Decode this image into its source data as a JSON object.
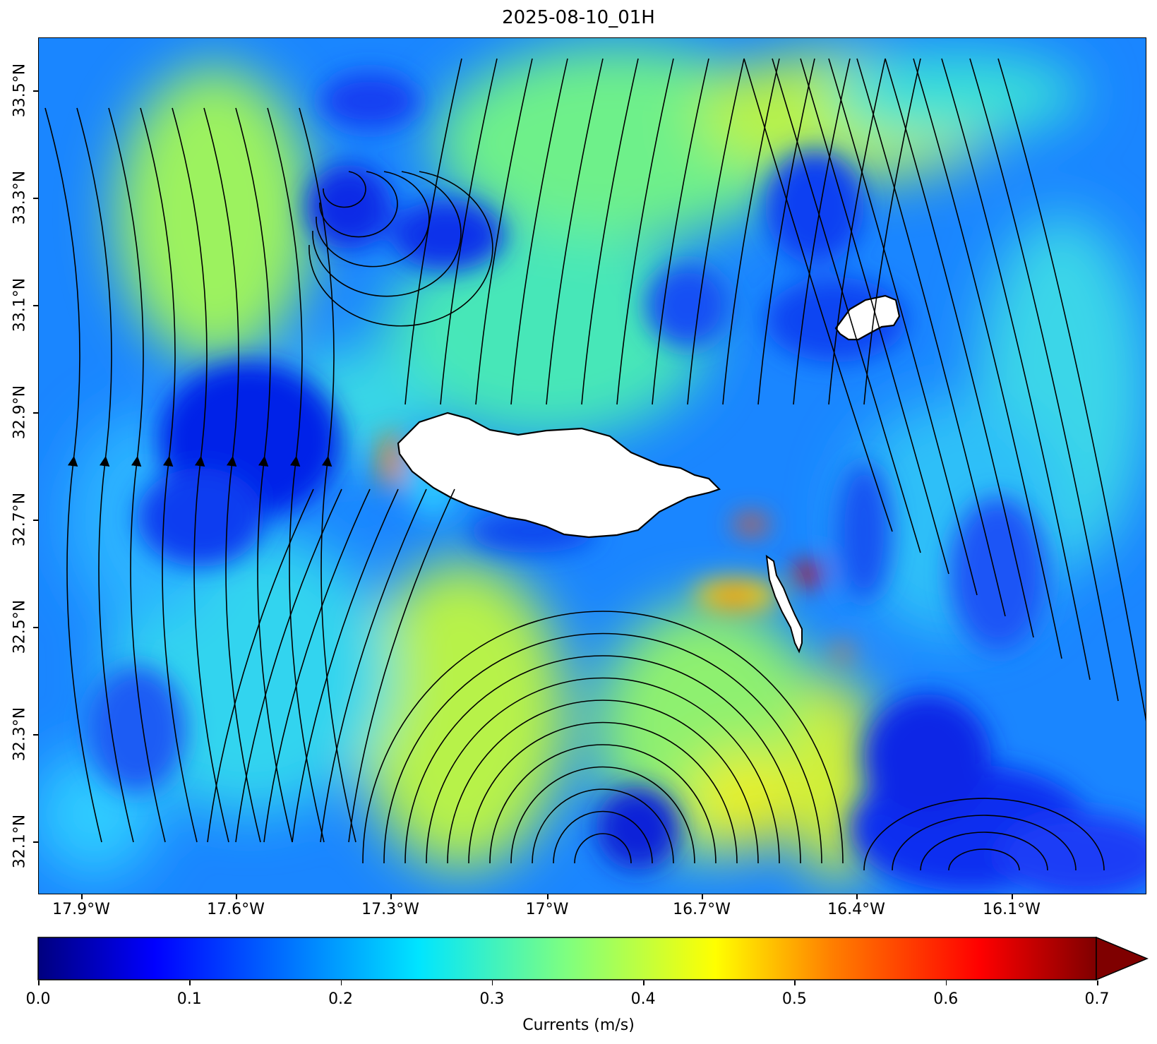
{
  "title": "2025-08-10_01H",
  "x_ticks": [
    "17.9°W",
    "17.6°W",
    "17.3°W",
    "17°W",
    "16.7°W",
    "16.4°W",
    "16.1°W"
  ],
  "y_ticks": [
    "33.5°N",
    "33.3°N",
    "33.1°N",
    "32.9°N",
    "32.7°N",
    "32.5°N",
    "32.3°N",
    "32.1°N"
  ],
  "colorbar": {
    "label": "Currents (m/s)",
    "ticks": [
      "0.0",
      "0.1",
      "0.2",
      "0.3",
      "0.4",
      "0.5",
      "0.6",
      "0.7"
    ],
    "range": [
      0,
      0.7
    ],
    "extend": "max",
    "colormap": "jet",
    "colors": [
      "#00007f",
      "#0000ff",
      "#007fff",
      "#00e5ff",
      "#7fff7f",
      "#ffff00",
      "#ff7f00",
      "#ff0000",
      "#7f0000"
    ]
  },
  "map": {
    "lon_range": [
      -17.96,
      -15.91
    ],
    "lat_range": [
      32.02,
      33.62
    ],
    "land_color": "#ffffff",
    "coastline_color": "#000000",
    "streamline_color": "#000000",
    "islands": [
      "Madeira",
      "Porto Santo",
      "Desertas"
    ]
  }
}
